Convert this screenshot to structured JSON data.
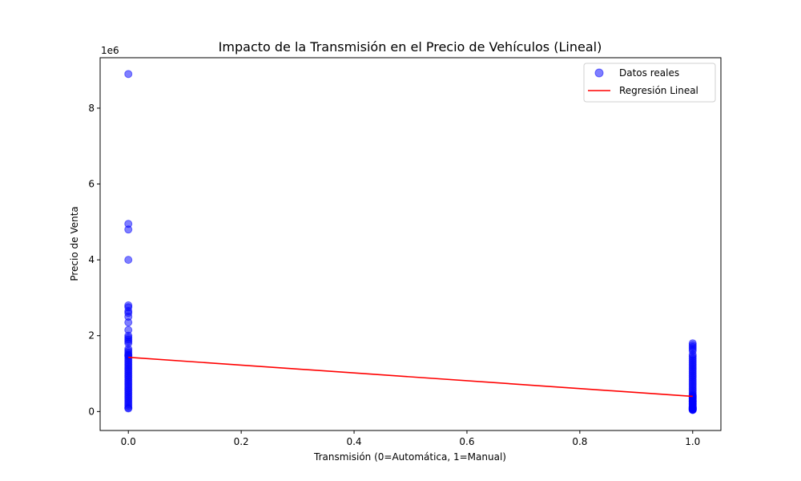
{
  "chart_data": {
    "type": "scatter",
    "title": "Impacto de la Transmisión en el Precio de Vehículos (Lineal)",
    "xlabel": "Transmisión (0=Automática, 1=Manual)",
    "ylabel": "Precio de Venta",
    "y_scale_label": "1e6",
    "xlim": [
      -0.05,
      1.05
    ],
    "ylim": [
      -500000,
      9330000
    ],
    "x_ticks": [
      0.0,
      0.2,
      0.4,
      0.6,
      0.8,
      1.0
    ],
    "x_tick_labels": [
      "0.0",
      "0.2",
      "0.4",
      "0.6",
      "0.8",
      "1.0"
    ],
    "y_ticks": [
      0,
      2000000,
      4000000,
      6000000,
      8000000
    ],
    "y_tick_labels": [
      "0",
      "2",
      "4",
      "6",
      "8"
    ],
    "grid": false,
    "legend_position": "top-right",
    "series": [
      {
        "name": "Datos reales",
        "kind": "scatter",
        "color": "#0000ff",
        "x": [
          0,
          0,
          0,
          0,
          0,
          0,
          0,
          0,
          0,
          0,
          0,
          0,
          0,
          0,
          0,
          0,
          0,
          0,
          0,
          0,
          0,
          0,
          0,
          0,
          0,
          0,
          0,
          0,
          0,
          0,
          0,
          0,
          0,
          0,
          0,
          0,
          0,
          0,
          0,
          0,
          0,
          0,
          0,
          0,
          0,
          0,
          0,
          0,
          0,
          0,
          1,
          1,
          1,
          1,
          1,
          1,
          1,
          1,
          1,
          1,
          1,
          1,
          1,
          1,
          1,
          1,
          1,
          1,
          1,
          1,
          1,
          1,
          1,
          1,
          1,
          1,
          1,
          1,
          1,
          1,
          1,
          1,
          1,
          1,
          1,
          1,
          1,
          1,
          1,
          1,
          1,
          1,
          1,
          1,
          1,
          1,
          1,
          1,
          1,
          1
        ],
        "y": [
          8900000,
          4950000,
          4800000,
          4000000,
          2800000,
          2750000,
          2650000,
          2600000,
          2500000,
          2350000,
          2150000,
          2000000,
          1950000,
          1900000,
          1850000,
          1800000,
          1650000,
          1600000,
          1550000,
          1500000,
          1450000,
          1400000,
          1350000,
          1300000,
          1250000,
          1200000,
          1150000,
          1100000,
          1050000,
          1000000,
          950000,
          900000,
          850000,
          800000,
          750000,
          700000,
          650000,
          600000,
          550000,
          500000,
          450000,
          400000,
          350000,
          300000,
          250000,
          200000,
          150000,
          100000,
          80000,
          1480000,
          1800000,
          1750000,
          1700000,
          1650000,
          1600000,
          1500000,
          1450000,
          1400000,
          1350000,
          1300000,
          1250000,
          1200000,
          1150000,
          1100000,
          1050000,
          1000000,
          950000,
          900000,
          850000,
          800000,
          750000,
          700000,
          650000,
          600000,
          550000,
          500000,
          450000,
          400000,
          350000,
          300000,
          280000,
          250000,
          220000,
          200000,
          180000,
          150000,
          130000,
          120000,
          100000,
          90000,
          80000,
          70000,
          60000,
          50000,
          45000,
          40000,
          420000,
          380000,
          330000,
          270000
        ]
      },
      {
        "name": "Regresión Lineal",
        "kind": "line",
        "color": "#ff0000",
        "x": [
          0,
          1
        ],
        "y": [
          1430000,
          400000
        ]
      }
    ]
  }
}
